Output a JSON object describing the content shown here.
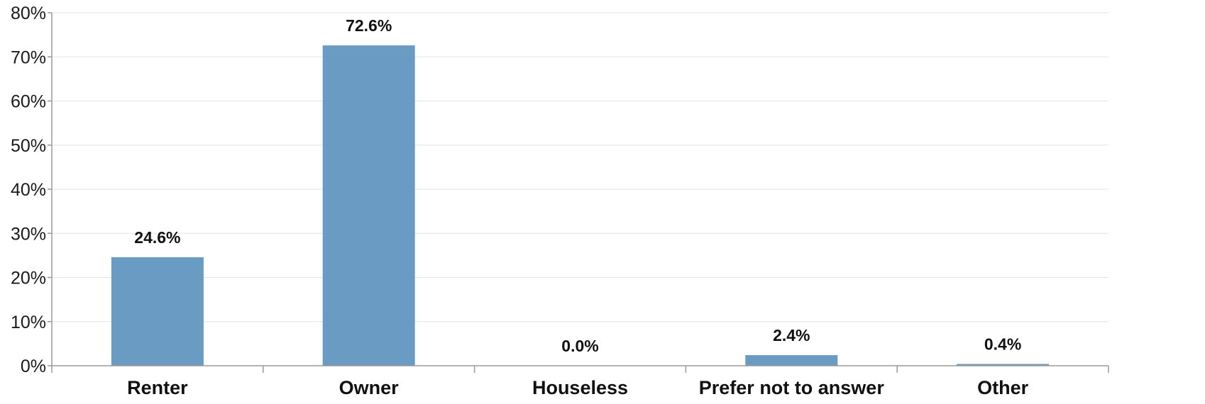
{
  "chart_data": {
    "type": "bar",
    "title": "",
    "xlabel": "",
    "ylabel": "",
    "categories": [
      "Renter",
      "Owner",
      "Houseless",
      "Prefer not to answer",
      "Other"
    ],
    "values": [
      24.6,
      72.6,
      0.0,
      2.4,
      0.4
    ],
    "value_labels": [
      "24.6%",
      "72.6%",
      "0.0%",
      "2.4%",
      "0.4%"
    ],
    "ylim": [
      0,
      80
    ],
    "y_ticks": [
      0,
      10,
      20,
      30,
      40,
      50,
      60,
      70,
      80
    ],
    "y_tick_labels": [
      "0%",
      "10%",
      "20%",
      "30%",
      "40%",
      "50%",
      "60%",
      "70%",
      "80%"
    ],
    "grid": true,
    "legend": "none",
    "bar_color": "#6a9bc3"
  }
}
